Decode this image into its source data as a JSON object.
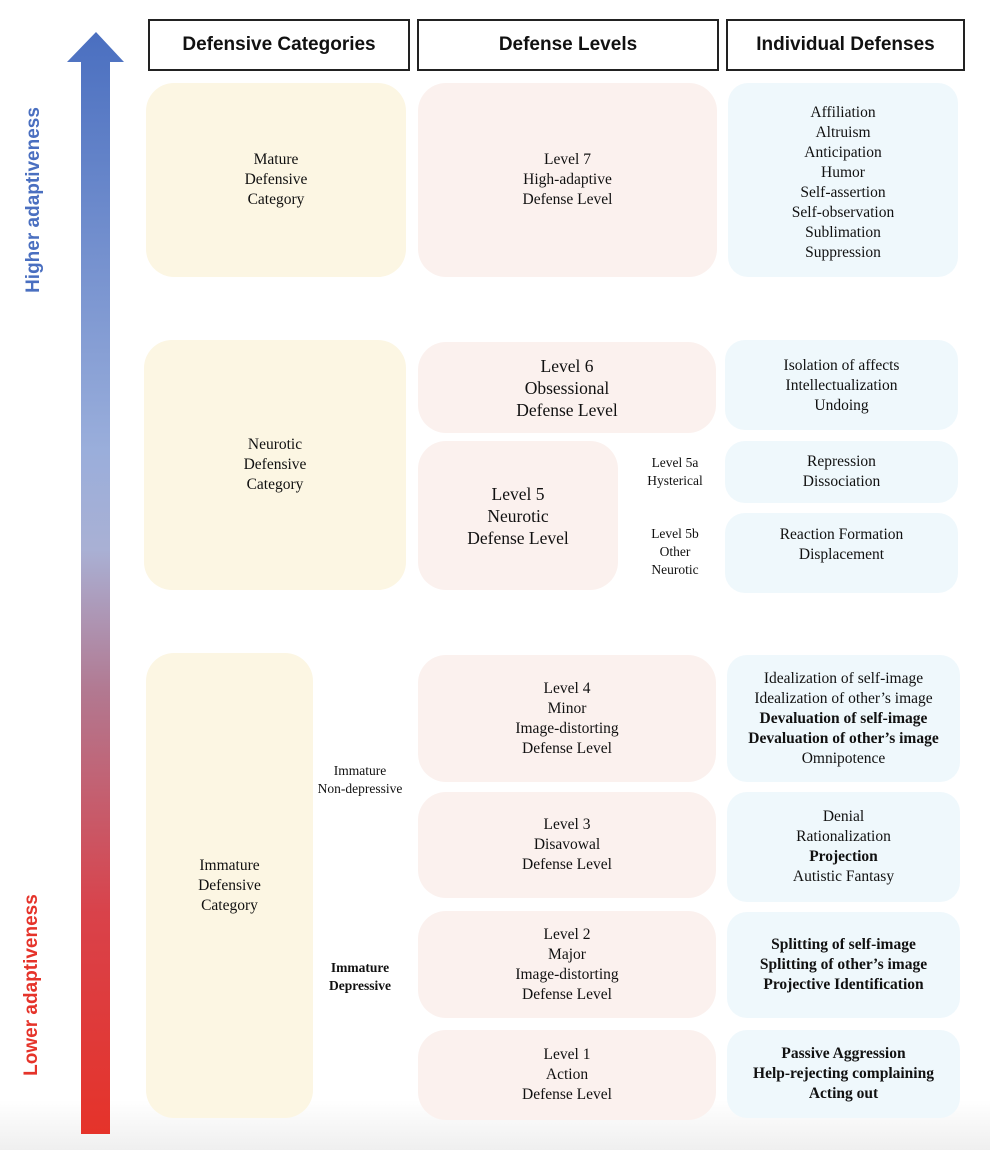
{
  "axis": {
    "top_label": "Higher adaptiveness",
    "bottom_label": "Lower adaptiveness",
    "top_color": "#4a6fc0",
    "bottom_color": "#e5332a"
  },
  "headers": [
    "Defensive Categories",
    "Defense Levels",
    "Individual Defenses"
  ],
  "categories": {
    "mature": [
      "Mature",
      "Defensive",
      "Category"
    ],
    "neurotic": [
      "Neurotic",
      "Defensive",
      "Category"
    ],
    "immature": [
      "Immature",
      "Defensive",
      "Category"
    ]
  },
  "subcategories": {
    "non_depressive": [
      "Immature",
      "Non-depressive"
    ],
    "depressive": [
      "Immature",
      "Depressive"
    ]
  },
  "levels": {
    "l7": [
      "Level 7",
      "High-adaptive",
      "Defense Level"
    ],
    "l6": [
      "Level 6",
      "Obsessional",
      "Defense Level"
    ],
    "l5": [
      "Level 5",
      "Neurotic",
      "Defense Level"
    ],
    "l5a": [
      "Level 5a",
      "Hysterical"
    ],
    "l5b": [
      "Level 5b",
      "Other",
      "Neurotic"
    ],
    "l4": [
      "Level 4",
      "Minor",
      "Image-distorting",
      "Defense Level"
    ],
    "l3": [
      "Level 3",
      "Disavowal",
      "Defense Level"
    ],
    "l2": [
      "Level 2",
      "Major",
      "Image-distorting",
      "Defense Level"
    ],
    "l1": [
      "Level 1",
      "Action",
      "Defense Level"
    ]
  },
  "defenses": {
    "l7": [
      {
        "t": "Affiliation"
      },
      {
        "t": "Altruism"
      },
      {
        "t": "Anticipation"
      },
      {
        "t": "Humor"
      },
      {
        "t": "Self-assertion"
      },
      {
        "t": "Self-observation"
      },
      {
        "t": "Sublimation"
      },
      {
        "t": "Suppression"
      }
    ],
    "l6": [
      {
        "t": "Isolation of affects"
      },
      {
        "t": "Intellectualization"
      },
      {
        "t": "Undoing"
      }
    ],
    "l5a": [
      {
        "t": "Repression"
      },
      {
        "t": "Dissociation"
      }
    ],
    "l5b": [
      {
        "t": "Reaction Formation"
      },
      {
        "t": "Displacement"
      }
    ],
    "l4": [
      {
        "t": "Idealization of self-image"
      },
      {
        "t": "Idealization of other’s image"
      },
      {
        "t": "Devaluation of self-image",
        "bold": true
      },
      {
        "t": "Devaluation of other’s image",
        "bold": true
      },
      {
        "t": "Omnipotence"
      }
    ],
    "l3": [
      {
        "t": "Denial"
      },
      {
        "t": "Rationalization"
      },
      {
        "t": "Projection",
        "bold": true
      },
      {
        "t": "Autistic Fantasy"
      }
    ],
    "l2": [
      {
        "t": "Splitting of self-image",
        "bold": true
      },
      {
        "t": "Splitting of other’s image",
        "bold": true
      },
      {
        "t": "Projective Identification",
        "bold": true
      }
    ],
    "l1": [
      {
        "t": "Passive Aggression",
        "bold": true
      },
      {
        "t": "Help-rejecting complaining",
        "bold": true
      },
      {
        "t": "Acting out",
        "bold": true
      }
    ]
  }
}
